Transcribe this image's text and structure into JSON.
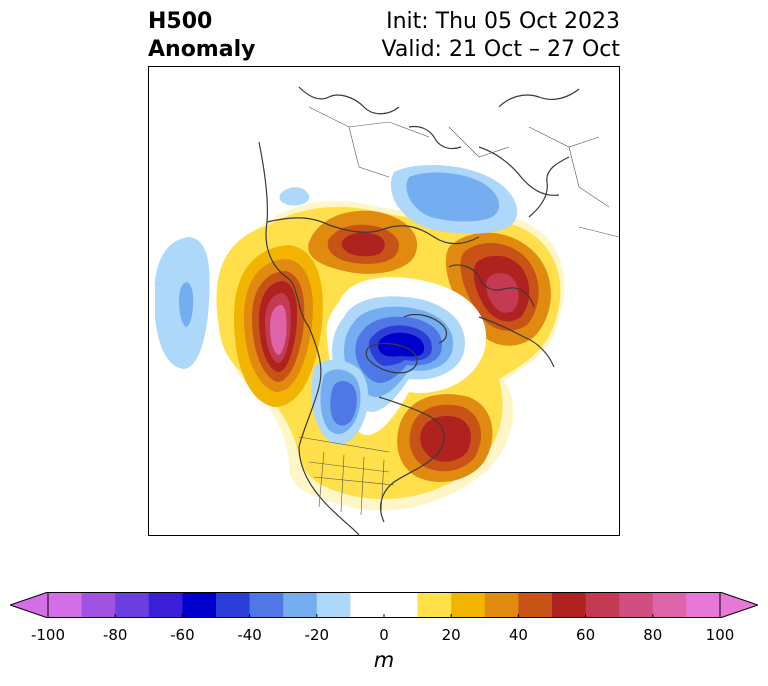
{
  "title": {
    "left_line1": "H500",
    "left_line2": "Anomaly",
    "right_line1": "Init: Thu 05 Oct 2023",
    "right_line2": "Valid: 21 Oct – 27 Oct"
  },
  "colorbar": {
    "units": "m",
    "ticks": [
      "-100",
      "-80",
      "-60",
      "-40",
      "-20",
      "0",
      "20",
      "40",
      "60",
      "80",
      "100"
    ],
    "colors": [
      "#d46ee6",
      "#a152e0",
      "#6b3ee0",
      "#3a1fd6",
      "#0000cc",
      "#2b3fd8",
      "#4f78e6",
      "#75aef0",
      "#aed8fa",
      "#ffffff",
      "#ffffff",
      "#ffe04a",
      "#f2b400",
      "#e08a10",
      "#c85316",
      "#b0221f",
      "#c43a52",
      "#d04f80",
      "#dd64a8",
      "#e878d8"
    ],
    "under_color": "#d46ee6",
    "over_color": "#e878d8"
  },
  "map": {
    "projection": "north-polar-stereographic",
    "field": "500 hPa geopotential height anomaly"
  }
}
